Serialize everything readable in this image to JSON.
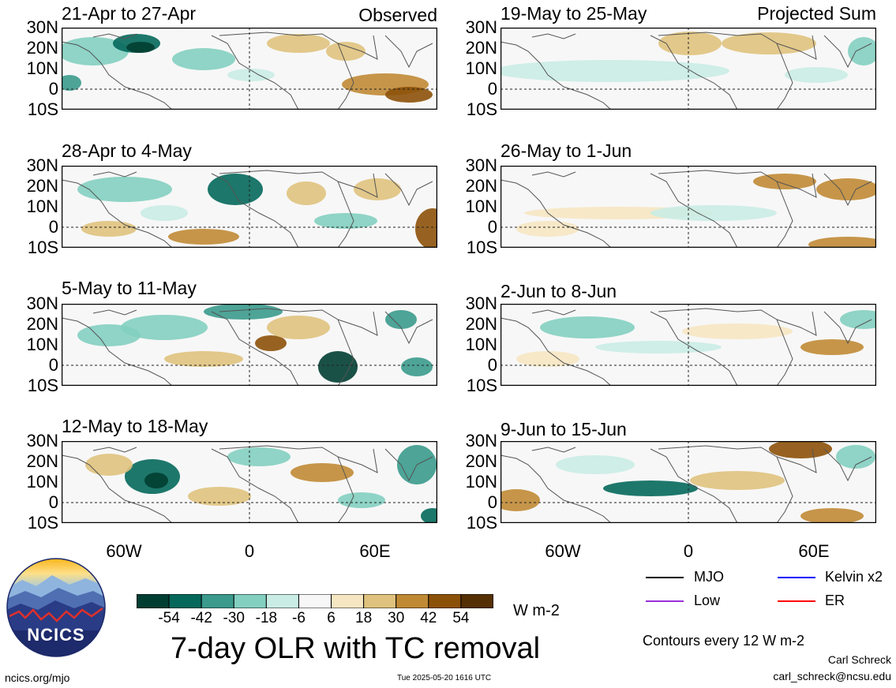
{
  "header": {
    "left_tag": "Observed",
    "right_tag": "Projected Sum"
  },
  "panels": {
    "observed": [
      {
        "title": "21-Apr to 27-Apr"
      },
      {
        "title": "28-Apr to 4-May"
      },
      {
        "title": "5-May to 11-May"
      },
      {
        "title": "12-May to 18-May"
      }
    ],
    "projected": [
      {
        "title": "19-May to 25-May"
      },
      {
        "title": "26-May to 1-Jun"
      },
      {
        "title": "2-Jun to 8-Jun"
      },
      {
        "title": "9-Jun to 15-Jun"
      }
    ]
  },
  "axes": {
    "lat_labels": [
      "30N",
      "20N",
      "10N",
      "0",
      "10S"
    ],
    "lon_labels": [
      "60W",
      "0",
      "60E"
    ]
  },
  "colorbar": {
    "ticks": [
      "-54",
      "-42",
      "-30",
      "-18",
      "-6",
      "6",
      "18",
      "30",
      "42",
      "54"
    ],
    "unit": "W m-2",
    "colors": [
      "#013e32",
      "#04685b",
      "#3a9a8c",
      "#83cfc0",
      "#c9ece4",
      "#f7f7f7",
      "#f6e6c2",
      "#dfc27d",
      "#c08a35",
      "#8c5109",
      "#543004"
    ]
  },
  "footer": {
    "title": "7-day OLR with TC removal",
    "logo_text": "NCICS",
    "url": "ncics.org/mjo",
    "timestamp": "Tue 2025-05-20 1616 UTC",
    "author": "Carl Schreck",
    "email": "carl_schreck@ncsu.edu",
    "contours_note": "Contours every 12 W m-2"
  },
  "legend": [
    {
      "label": "MJO",
      "color": "#000000"
    },
    {
      "label": "Kelvin x2",
      "color": "#0000ff"
    },
    {
      "label": "Low",
      "color": "#9b30d9"
    },
    {
      "label": "ER",
      "color": "#ff0000"
    }
  ]
}
